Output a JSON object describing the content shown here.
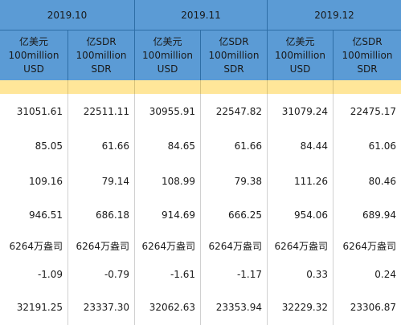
{
  "header": {
    "groups": [
      "2019.10",
      "2019.11",
      "2019.12"
    ],
    "units": [
      [
        "亿美元",
        "100million",
        "USD"
      ],
      [
        "亿SDR",
        "100million",
        "SDR"
      ],
      [
        "亿美元",
        "100million",
        "USD"
      ],
      [
        "亿SDR",
        "100million",
        "SDR"
      ],
      [
        "亿美元",
        "100million",
        "USD"
      ],
      [
        "亿SDR",
        "100million",
        "SDR"
      ]
    ]
  },
  "table": {
    "rows": [
      [
        "31051.61",
        "22511.11",
        "30955.91",
        "22547.82",
        "31079.24",
        "22475.17"
      ],
      [
        "85.05",
        "61.66",
        "84.65",
        "61.66",
        "84.44",
        "61.06"
      ],
      [
        "109.16",
        "79.14",
        "108.99",
        "79.38",
        "111.26",
        "80.46"
      ],
      [
        "946.51",
        "686.18",
        "914.69",
        "666.25",
        "954.06",
        "689.94"
      ],
      [
        "6264万盎司",
        "6264万盎司",
        "6264万盎司",
        "6264万盎司",
        "6264万盎司",
        "6264万盎司"
      ],
      [
        "-1.09",
        "-0.79",
        "-1.61",
        "-1.17",
        "0.33",
        "0.24"
      ],
      [
        "32191.25",
        "23337.30",
        "32062.63",
        "23353.94",
        "32229.32",
        "23306.87"
      ]
    ]
  }
}
